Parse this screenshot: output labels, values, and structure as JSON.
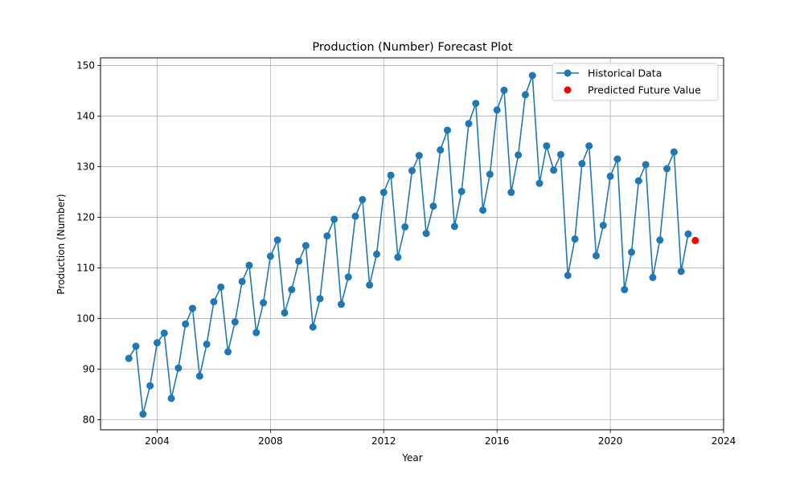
{
  "chart_data": {
    "type": "line",
    "title": "Production (Number) Forecast Plot",
    "xlabel": "Year",
    "ylabel": "Production (Number)",
    "xlim": [
      2002.0,
      2024.0
    ],
    "ylim": [
      78.0,
      151.5
    ],
    "xticks": [
      2004,
      2008,
      2012,
      2016,
      2020,
      2024
    ],
    "yticks": [
      80,
      90,
      100,
      110,
      120,
      130,
      140,
      150
    ],
    "grid": true,
    "legend": "top-right",
    "colors": {
      "historical": "#1f77b4",
      "predicted": "#ff0000"
    },
    "series": [
      {
        "name": "Historical Data",
        "marker": "circle",
        "x": [
          2003.0,
          2003.25,
          2003.5,
          2003.75,
          2004.0,
          2004.25,
          2004.5,
          2004.75,
          2005.0,
          2005.25,
          2005.5,
          2005.75,
          2006.0,
          2006.25,
          2006.5,
          2006.75,
          2007.0,
          2007.25,
          2007.5,
          2007.75,
          2008.0,
          2008.25,
          2008.5,
          2008.75,
          2009.0,
          2009.25,
          2009.5,
          2009.75,
          2010.0,
          2010.25,
          2010.5,
          2010.75,
          2011.0,
          2011.25,
          2011.5,
          2011.75,
          2012.0,
          2012.25,
          2012.5,
          2012.75,
          2013.0,
          2013.25,
          2013.5,
          2013.75,
          2014.0,
          2014.25,
          2014.5,
          2014.75,
          2015.0,
          2015.25,
          2015.5,
          2015.75,
          2016.0,
          2016.25,
          2016.5,
          2016.75,
          2017.0,
          2017.25,
          2017.5,
          2017.75,
          2018.0,
          2018.25,
          2018.5,
          2018.75,
          2019.0,
          2019.25,
          2019.5,
          2019.75,
          2020.0,
          2020.25,
          2020.5,
          2020.75,
          2021.0,
          2021.25,
          2021.5,
          2021.75,
          2022.0,
          2022.25,
          2022.5,
          2022.75
        ],
        "values": [
          92.1,
          94.5,
          81.1,
          86.7,
          95.2,
          97.1,
          84.2,
          90.2,
          98.9,
          102.0,
          88.6,
          94.9,
          103.3,
          106.2,
          93.4,
          99.3,
          107.3,
          110.5,
          97.2,
          103.1,
          112.3,
          115.5,
          101.1,
          105.7,
          111.3,
          114.4,
          98.3,
          103.9,
          116.3,
          119.6,
          102.8,
          108.2,
          120.2,
          123.5,
          106.6,
          112.7,
          124.9,
          128.3,
          112.1,
          118.1,
          129.2,
          132.2,
          116.8,
          122.2,
          133.3,
          137.2,
          118.2,
          125.1,
          138.5,
          142.5,
          121.4,
          128.5,
          141.2,
          145.1,
          124.9,
          132.3,
          144.2,
          148.0,
          126.7,
          134.1,
          129.3,
          132.4,
          108.5,
          115.7,
          130.6,
          134.1,
          112.4,
          118.4,
          128.1,
          131.5,
          105.7,
          113.1,
          127.2,
          130.4,
          108.1,
          115.5,
          129.6,
          132.9,
          109.3,
          116.7
        ]
      },
      {
        "name": "Predicted Future Value",
        "marker": "circle",
        "x": [
          2023.0
        ],
        "values": [
          115.4
        ]
      }
    ]
  }
}
